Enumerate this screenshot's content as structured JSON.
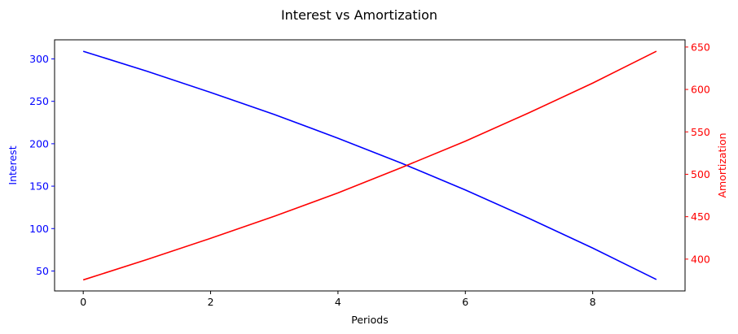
{
  "chart_data": {
    "type": "line",
    "title": "Interest vs Amortization",
    "xlabel": "Periods",
    "x": [
      0,
      1,
      2,
      3,
      4,
      5,
      6,
      7,
      8,
      9
    ],
    "xlim": [
      -0.45,
      9.45
    ],
    "xticks": [
      0,
      2,
      4,
      6,
      8
    ],
    "grid": false,
    "y_left": {
      "label": "Interest",
      "color": "#0000ff",
      "lim": [
        26.5,
        322.5
      ],
      "ticks": [
        50,
        100,
        150,
        200,
        250,
        300
      ]
    },
    "y_right": {
      "label": "Amortization",
      "color": "#ff0000",
      "lim": [
        362.5,
        658.5
      ],
      "ticks": [
        400,
        450,
        500,
        550,
        600,
        650
      ]
    },
    "series": [
      {
        "axis": "left",
        "color": "#0000ff",
        "values": [
          309,
          285.5,
          260.5,
          234.5,
          206.5,
          177,
          145.5,
          112,
          77,
          40
        ]
      },
      {
        "axis": "right",
        "color": "#ff0000",
        "values": [
          375.5,
          399.5,
          424.5,
          450.5,
          478,
          508,
          539,
          572.5,
          607.5,
          645
        ]
      }
    ]
  }
}
